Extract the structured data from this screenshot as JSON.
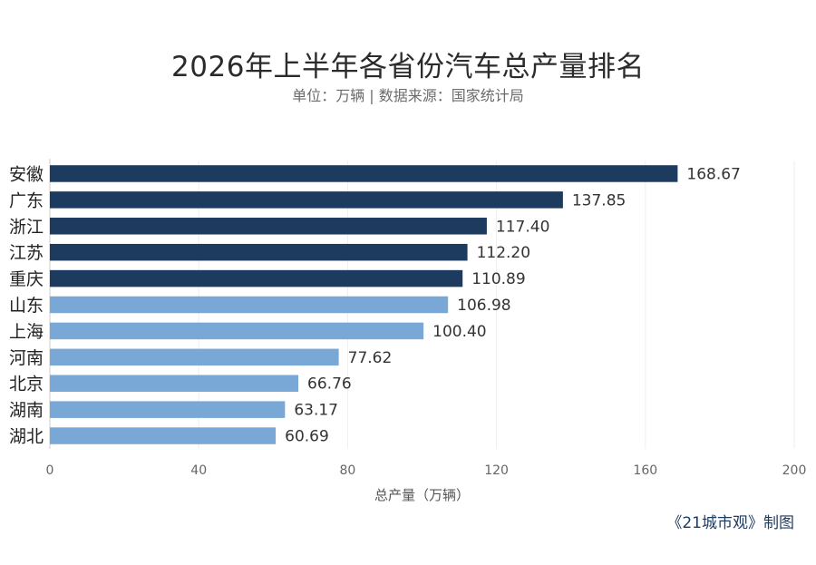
{
  "header": {
    "title": "2026年上半年各省份汽车总产量排名",
    "subtitle": "单位：万辆  |  数据来源：国家统计局"
  },
  "footer": {
    "credit": "《21城市观》制图"
  },
  "colors": {
    "dark_bar": "#1d3a5f",
    "light_bar": "#7aa8d6",
    "grid": "#eeeeee",
    "axis": "#cccccc"
  },
  "chart_data": {
    "type": "bar",
    "orientation": "horizontal",
    "categories": [
      "安徽",
      "广东",
      "浙江",
      "江苏",
      "重庆",
      "山东",
      "上海",
      "河南",
      "北京",
      "湖南",
      "湖北"
    ],
    "values": [
      168.67,
      137.85,
      117.4,
      112.2,
      110.89,
      106.98,
      100.4,
      77.62,
      66.76,
      63.17,
      60.69
    ],
    "value_labels": [
      "168.67",
      "137.85",
      "117.40",
      "112.20",
      "110.89",
      "106.98",
      "100.40",
      "77.62",
      "66.76",
      "63.17",
      "60.69"
    ],
    "highlight_count": 5,
    "xlabel": "总产量（万辆）",
    "xlim": [
      0,
      200
    ],
    "xticks": [
      0,
      40,
      80,
      120,
      160,
      200
    ],
    "xtick_labels": [
      "0",
      "40",
      "80",
      "120",
      "160",
      "200"
    ],
    "grid": true
  }
}
